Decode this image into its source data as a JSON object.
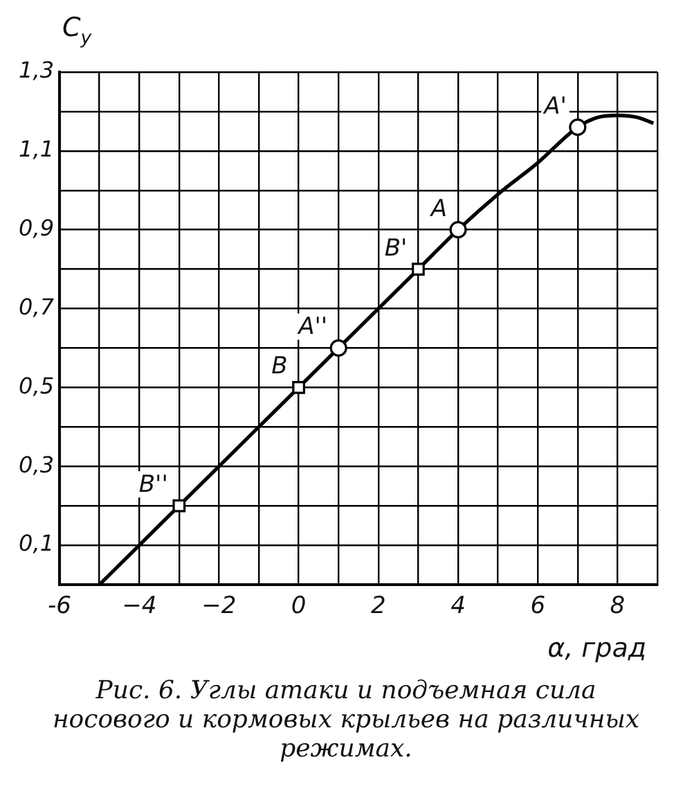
{
  "chart_data": {
    "type": "line",
    "xlabel": "α, град",
    "ylabel": "C$_{y}$",
    "annotations": [
      {
        "text": "B''",
        "x": -3,
        "y": 0.2
      },
      {
        "text": "B",
        "x": 0,
        "y": 0.5
      },
      {
        "text": "A''",
        "x": 1,
        "y": 0.6
      },
      {
        "text": "B'",
        "x": 3,
        "y": 0.8
      },
      {
        "text": "A",
        "x": 4,
        "y": 0.9
      },
      {
        "text": "A'",
        "x": 7,
        "y": 1.16
      },
      "Рис. 6. Углы атаки и подъемная сила носового и кормовых крыльев на различных режимах."
    ],
    "series": [
      {
        "color": "#000000",
        "marker": "none",
        "x": [
          -5,
          -3,
          0,
          1,
          3,
          4,
          5,
          6,
          7,
          7.5,
          8,
          8.5,
          8.9
        ],
        "values": [
          0,
          0.2,
          0.5,
          0.6,
          0.8,
          0.9,
          0.99,
          1.07,
          1.16,
          1.185,
          1.19,
          1.185,
          1.17
        ]
      },
      {
        "type": "scatter",
        "color": "#000000",
        "marker": "square",
        "x": [
          -3,
          0,
          3
        ],
        "values": [
          0.2,
          0.5,
          0.8
        ]
      },
      {
        "type": "scatter",
        "color": "#000000",
        "marker": "circle",
        "x": [
          1,
          4,
          7
        ],
        "values": [
          0.6,
          0.9,
          1.16
        ]
      }
    ],
    "xlim": [
      -6,
      9
    ],
    "ylim": [
      0,
      1.3
    ],
    "xticks": [
      -6,
      {
        "value": -5,
        "label": null
      },
      {
        "value": -4,
        "label": "−4"
      },
      {
        "value": -3,
        "label": null
      },
      {
        "value": -2,
        "label": "−2"
      },
      {
        "value": -1,
        "label": null
      },
      0,
      {
        "value": 1,
        "label": null
      },
      2,
      {
        "value": 3,
        "label": null
      },
      4,
      {
        "value": 5,
        "label": null
      },
      6,
      {
        "value": 7,
        "label": null
      },
      8,
      {
        "value": 9,
        "label": null
      }
    ],
    "yticks": [
      {
        "value": 0,
        "label": null
      },
      {
        "value": 0.1,
        "label": "0,1"
      },
      {
        "value": 0.2,
        "label": null
      },
      {
        "value": 0.3,
        "label": "0,3"
      },
      {
        "value": 0.4,
        "label": null
      },
      {
        "value": 0.5,
        "label": "0,5"
      },
      {
        "value": 0.6,
        "label": null
      },
      {
        "value": 0.7,
        "label": "0,7"
      },
      {
        "value": 0.8,
        "label": null
      },
      {
        "value": 0.9,
        "label": "0,9"
      },
      {
        "value": 1.0,
        "label": null
      },
      {
        "value": 1.1,
        "label": "1,1"
      },
      {
        "value": 1.2,
        "label": null
      },
      {
        "value": 1.3,
        "label": "1,3"
      }
    ],
    "grid": true,
    "legend": false
  }
}
